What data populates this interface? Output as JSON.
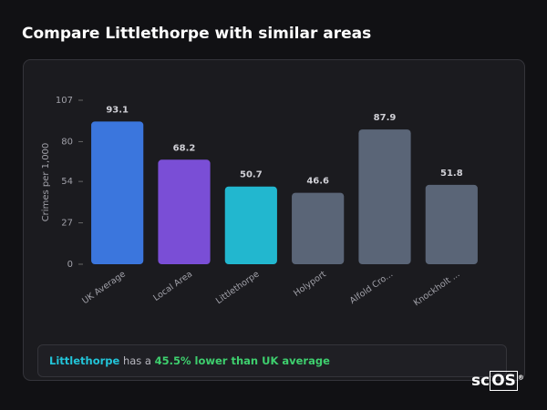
{
  "page_title": "Compare Littlethorpe with similar areas",
  "chart_data": {
    "type": "bar",
    "y_label": "Crimes per 1,000",
    "categories": [
      "UK Average",
      "Local Area",
      "Littlethorpe",
      "Holyport",
      "Alfold Cro...",
      "Knockholt ..."
    ],
    "values": [
      93.1,
      68.2,
      50.7,
      46.6,
      87.9,
      51.8
    ],
    "colors": [
      "#3b76dd",
      "#7a4ed6",
      "#22b7cf",
      "#5a6577",
      "#5a6577",
      "#5a6577"
    ],
    "ylim": [
      0,
      107
    ],
    "yticks": [
      0,
      27,
      54,
      80,
      107
    ],
    "grid": false
  },
  "summary": {
    "area": "Littlethorpe",
    "middle": "has a",
    "highlight": "45.5% lower than UK average"
  },
  "logo": {
    "prefix": "sc",
    "boxed": "OS",
    "mark": "®"
  }
}
